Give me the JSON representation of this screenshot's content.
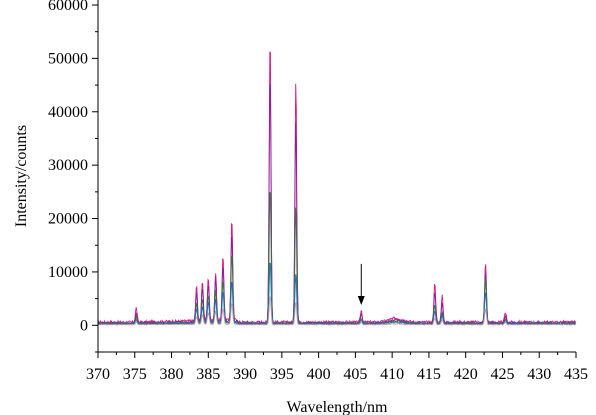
{
  "chart_data": {
    "type": "line",
    "title": "",
    "xlabel": "Wavelength/nm",
    "ylabel": "Intensity/counts",
    "xlim": [
      370,
      435
    ],
    "ylim": [
      -5000,
      60000
    ],
    "x_ticks": [
      370,
      375,
      380,
      385,
      390,
      395,
      400,
      405,
      410,
      415,
      420,
      425,
      430,
      435
    ],
    "x_tick_labels": [
      "370",
      "375",
      "380",
      "385",
      "390",
      "395",
      "400",
      "405",
      "410",
      "415",
      "420",
      "425",
      "430",
      "435"
    ],
    "y_ticks": [
      0,
      10000,
      20000,
      30000,
      40000,
      50000,
      60000
    ],
    "y_tick_labels": [
      "0",
      "10000",
      "20000",
      "30000",
      "40000",
      "50000",
      "60000"
    ],
    "grid": false,
    "legend": "none",
    "annotation": {
      "type": "arrow",
      "x": 405.8,
      "y_from": 11500,
      "y_to": 3800
    },
    "series": [
      {
        "color": "#e0187a",
        "peaks": [
          [
            393.4,
            53500
          ],
          [
            396.9,
            45500
          ],
          [
            388.2,
            19000
          ],
          [
            387.0,
            12000
          ],
          [
            422.7,
            11000
          ],
          [
            386.0,
            9000
          ],
          [
            385.0,
            8000
          ],
          [
            384.2,
            7500
          ],
          [
            383.4,
            6500
          ],
          [
            415.8,
            7400
          ],
          [
            416.8,
            5000
          ],
          [
            375.2,
            2700
          ],
          [
            405.8,
            2200
          ],
          [
            425.4,
            1800
          ]
        ],
        "baseline": 600
      },
      {
        "color": "#8a1fa0",
        "peaks": [
          [
            393.4,
            47000
          ],
          [
            396.9,
            38000
          ],
          [
            388.2,
            16500
          ],
          [
            387.0,
            10500
          ],
          [
            422.7,
            9500
          ],
          [
            386.0,
            8200
          ],
          [
            385.0,
            7000
          ],
          [
            384.2,
            6400
          ],
          [
            383.4,
            5600
          ],
          [
            415.8,
            5800
          ],
          [
            416.8,
            3800
          ],
          [
            375.2,
            1800
          ],
          [
            405.8,
            1600
          ],
          [
            425.4,
            1300
          ]
        ],
        "baseline": 450
      },
      {
        "color": "#2f7d3a",
        "peaks": [
          [
            393.4,
            26000
          ],
          [
            396.9,
            22000
          ],
          [
            388.2,
            13000
          ],
          [
            387.0,
            8000
          ],
          [
            422.7,
            8500
          ],
          [
            386.0,
            6000
          ],
          [
            385.0,
            5200
          ],
          [
            384.2,
            4400
          ],
          [
            383.4,
            3800
          ],
          [
            415.8,
            3500
          ],
          [
            416.8,
            2200
          ],
          [
            375.2,
            1200
          ],
          [
            405.8,
            1000
          ],
          [
            425.4,
            900
          ]
        ],
        "baseline": 350
      },
      {
        "color": "#1f6fb8",
        "peaks": [
          [
            393.4,
            12000
          ],
          [
            396.9,
            9500
          ],
          [
            388.2,
            8000
          ],
          [
            387.0,
            6000
          ],
          [
            422.7,
            6000
          ],
          [
            386.0,
            4500
          ],
          [
            385.0,
            4000
          ],
          [
            384.2,
            3200
          ],
          [
            383.4,
            2800
          ],
          [
            415.8,
            2400
          ],
          [
            416.8,
            1600
          ],
          [
            375.2,
            900
          ],
          [
            405.8,
            700
          ],
          [
            425.4,
            700
          ]
        ],
        "baseline": 250
      },
      {
        "color": "#c8a0a8",
        "peaks": [
          [
            393.4,
            5500
          ],
          [
            396.9,
            4200
          ],
          [
            388.2,
            4000
          ],
          [
            387.0,
            3000
          ],
          [
            422.7,
            3000
          ],
          [
            386.0,
            2500
          ],
          [
            385.0,
            2200
          ],
          [
            384.2,
            1800
          ],
          [
            383.4,
            1500
          ],
          [
            415.8,
            1200
          ],
          [
            416.8,
            900
          ],
          [
            375.2,
            500
          ],
          [
            405.8,
            400
          ],
          [
            425.4,
            400
          ]
        ],
        "baseline": 120
      }
    ]
  }
}
